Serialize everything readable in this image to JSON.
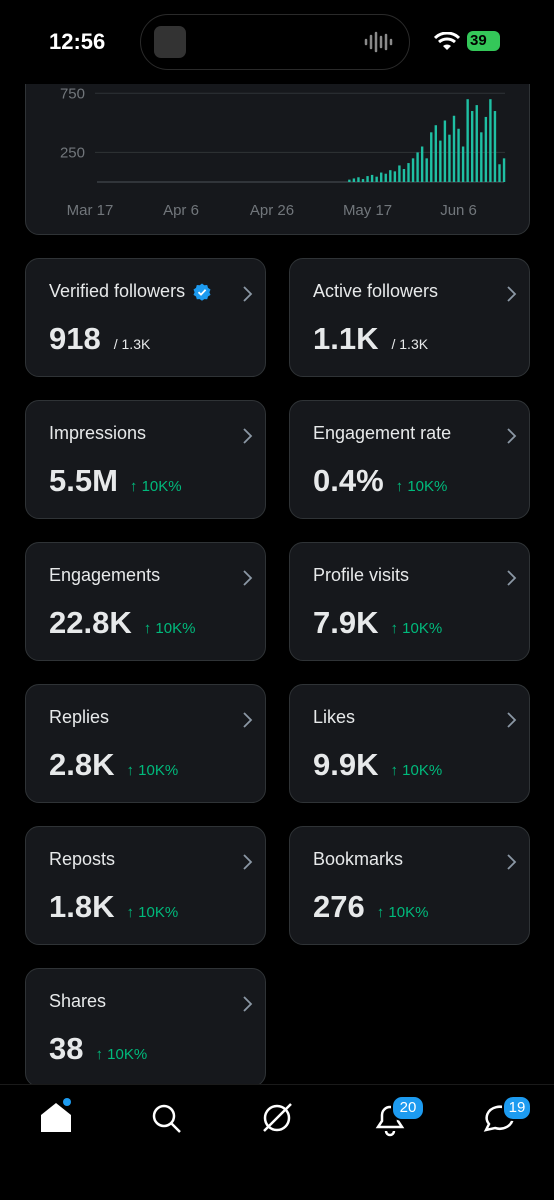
{
  "status_bar": {
    "time": "12:56",
    "battery": "39"
  },
  "chart_data": {
    "type": "bar",
    "color": "#1fbfa3",
    "categories": [
      "Mar 17",
      null,
      null,
      null,
      null,
      null,
      null,
      null,
      null,
      null,
      null,
      null,
      null,
      null,
      null,
      null,
      null,
      null,
      null,
      null,
      "Apr 6",
      null,
      null,
      null,
      null,
      null,
      null,
      null,
      null,
      null,
      null,
      null,
      null,
      null,
      null,
      null,
      null,
      null,
      null,
      null,
      "Apr 26",
      null,
      null,
      null,
      null,
      null,
      null,
      null,
      null,
      null,
      null,
      null,
      null,
      null,
      null,
      null,
      null,
      null,
      null,
      null,
      null,
      "May 17",
      null,
      null,
      null,
      null,
      null,
      null,
      null,
      null,
      null,
      null,
      null,
      null,
      null,
      null,
      null,
      null,
      null,
      null,
      null,
      "Jun 6",
      null,
      null,
      null,
      null,
      null,
      null,
      null,
      null,
      null,
      null
    ],
    "values": [
      0,
      0,
      0,
      0,
      0,
      0,
      0,
      0,
      0,
      0,
      0,
      0,
      0,
      0,
      0,
      0,
      0,
      0,
      0,
      0,
      0,
      0,
      0,
      0,
      0,
      0,
      0,
      0,
      0,
      0,
      0,
      0,
      0,
      0,
      0,
      0,
      0,
      0,
      0,
      0,
      0,
      0,
      0,
      0,
      0,
      0,
      0,
      0,
      0,
      0,
      0,
      0,
      0,
      0,
      0,
      0,
      0,
      20,
      30,
      40,
      25,
      50,
      60,
      45,
      80,
      70,
      100,
      90,
      140,
      110,
      160,
      200,
      250,
      300,
      200,
      420,
      480,
      350,
      520,
      400,
      560,
      450,
      300,
      700,
      600,
      650,
      420,
      550,
      700,
      600,
      150,
      200
    ],
    "ylim": [
      0,
      820
    ],
    "yticks": [
      250,
      750
    ],
    "grid": true
  },
  "cards": [
    {
      "label": "Verified followers",
      "verified": true,
      "value": "918",
      "sub": "/ 1.3K"
    },
    {
      "label": "Active followers",
      "value": "1.1K",
      "sub": "/ 1.3K"
    },
    {
      "label": "Impressions",
      "value": "5.5M",
      "change": "↑ 10K%"
    },
    {
      "label": "Engagement rate",
      "value": "0.4%",
      "change": "↑ 10K%"
    },
    {
      "label": "Engagements",
      "value": "22.8K",
      "change": "↑ 10K%"
    },
    {
      "label": "Profile visits",
      "value": "7.9K",
      "change": "↑ 10K%"
    },
    {
      "label": "Replies",
      "value": "2.8K",
      "change": "↑ 10K%"
    },
    {
      "label": "Likes",
      "value": "9.9K",
      "change": "↑ 10K%"
    },
    {
      "label": "Reposts",
      "value": "1.8K",
      "change": "↑ 10K%"
    },
    {
      "label": "Bookmarks",
      "value": "276",
      "change": "↑ 10K%"
    },
    {
      "label": "Shares",
      "value": "38",
      "change": "↑ 10K%"
    }
  ],
  "nav": {
    "notifications_badge": "20",
    "messages_badge": "19"
  }
}
